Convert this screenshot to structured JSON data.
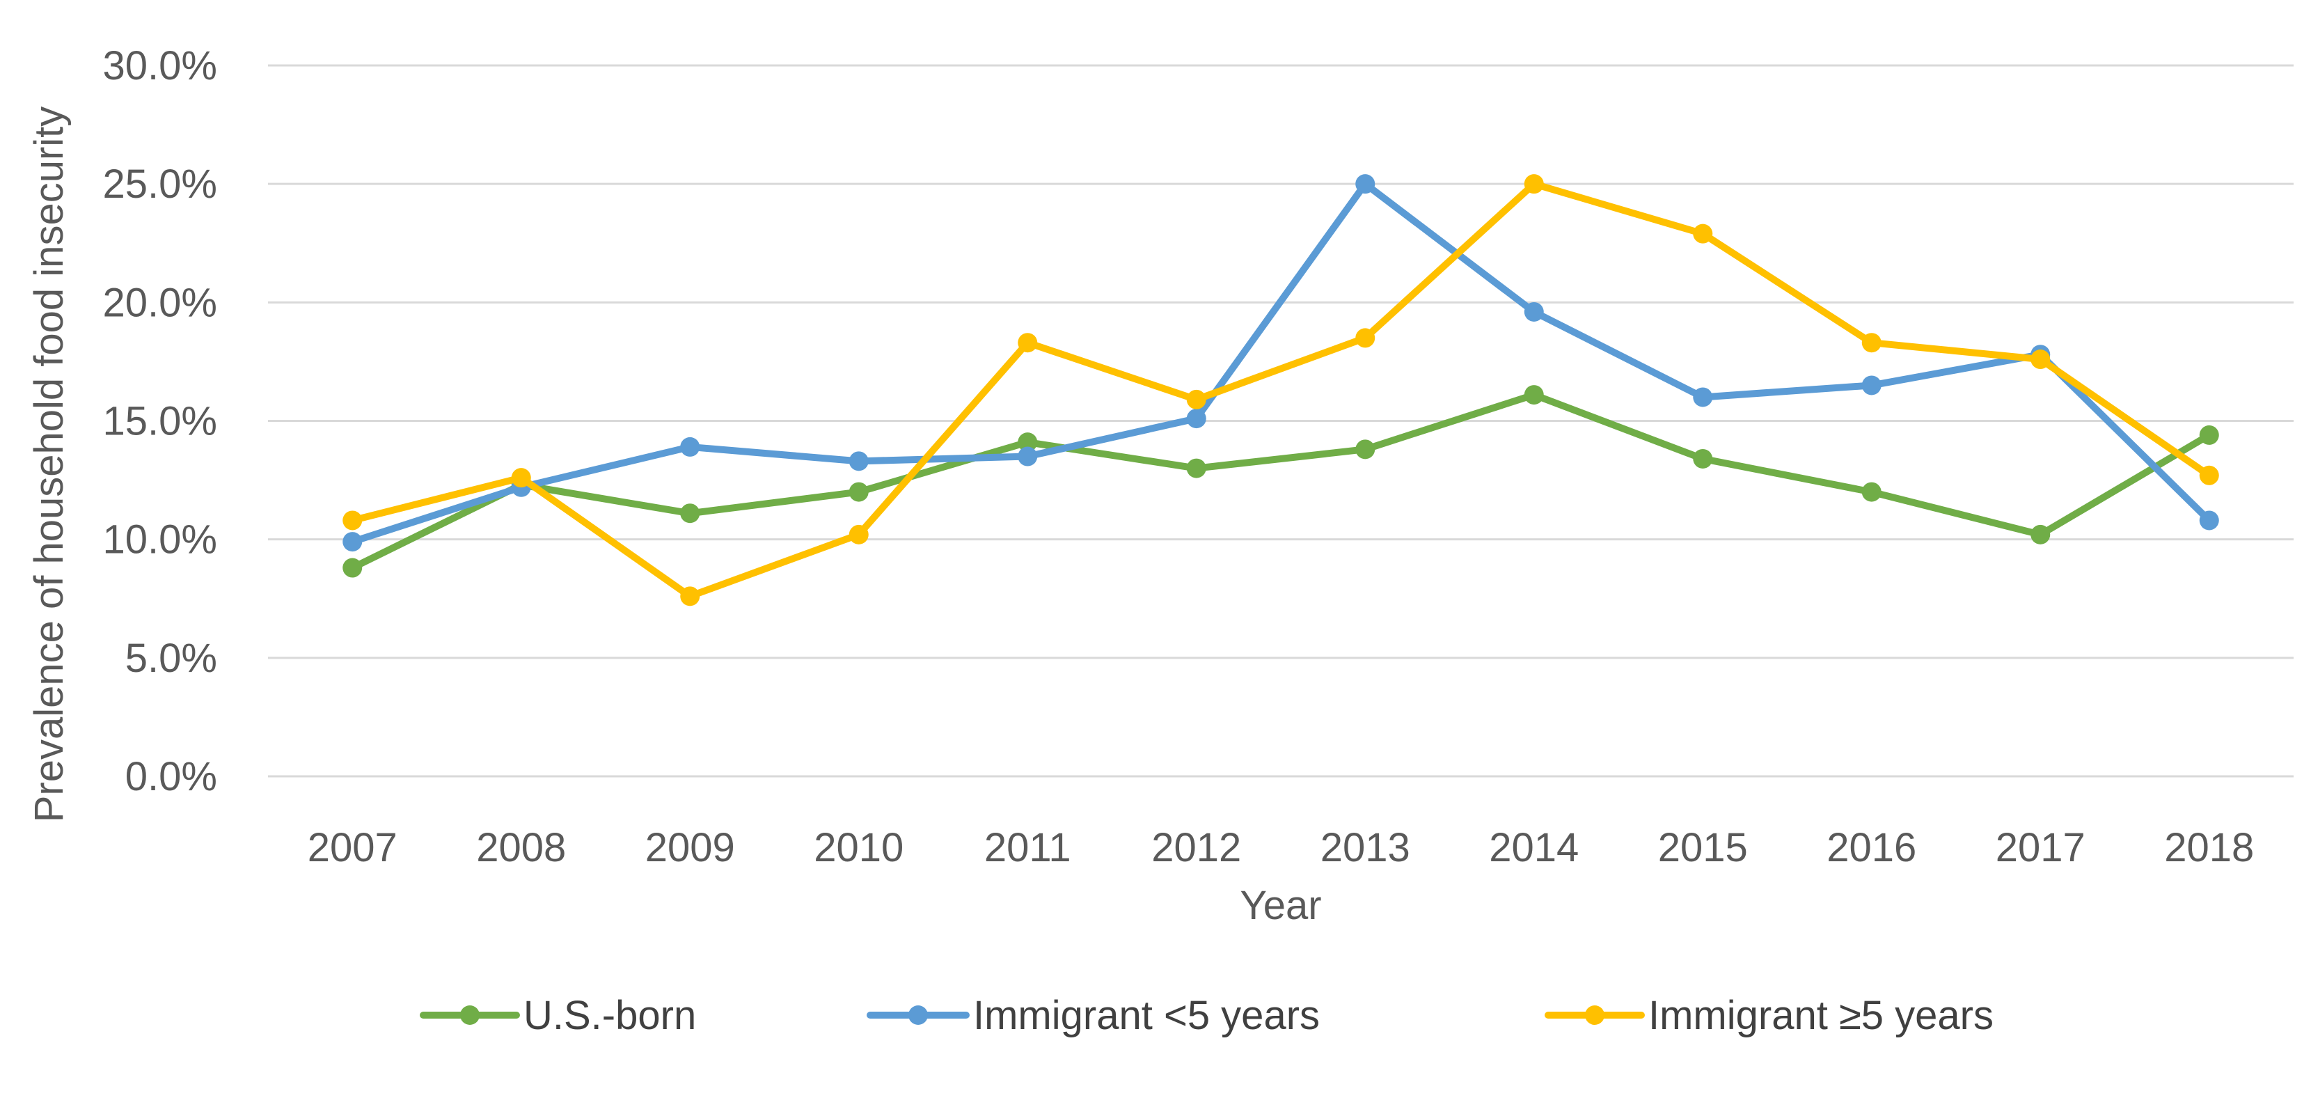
{
  "chart_data": {
    "type": "line",
    "title": "",
    "xlabel": "Year",
    "ylabel": "Prevalence of household food insecurity",
    "categories": [
      "2007",
      "2008",
      "2009",
      "2010",
      "2011",
      "2012",
      "2013",
      "2014",
      "2015",
      "2016",
      "2017",
      "2018"
    ],
    "y_ticks": [
      "0.0%",
      "5.0%",
      "10.0%",
      "15.0%",
      "20.0%",
      "25.0%",
      "30.0%"
    ],
    "y_tick_values": [
      0,
      5,
      10,
      15,
      20,
      25,
      30
    ],
    "ylim": [
      0,
      30
    ],
    "grid": true,
    "legend_position": "bottom",
    "series": [
      {
        "name": "U.S.-born",
        "color": "#70ad47",
        "values": [
          8.8,
          12.3,
          11.1,
          12.0,
          14.1,
          13.0,
          13.8,
          16.1,
          13.4,
          12.0,
          10.2,
          14.4
        ]
      },
      {
        "name": "Immigrant <5 years",
        "color": "#5b9bd5",
        "values": [
          9.9,
          12.2,
          13.9,
          13.3,
          13.5,
          15.1,
          25.0,
          19.6,
          16.0,
          16.5,
          17.8,
          10.8
        ]
      },
      {
        "name": "Immigrant ≥5 years",
        "color": "#ffc000",
        "values": [
          10.8,
          12.6,
          7.6,
          10.2,
          18.3,
          15.9,
          18.5,
          25.0,
          22.9,
          18.3,
          17.6,
          12.7
        ]
      }
    ]
  }
}
